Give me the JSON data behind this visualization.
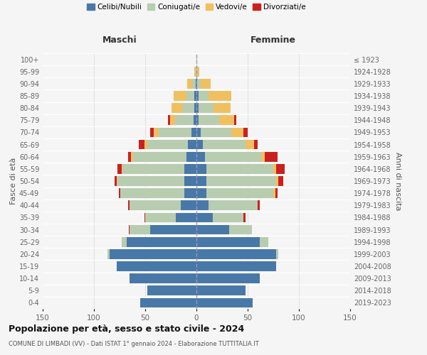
{
  "age_groups": [
    "0-4",
    "5-9",
    "10-14",
    "15-19",
    "20-24",
    "25-29",
    "30-34",
    "35-39",
    "40-44",
    "45-49",
    "50-54",
    "55-59",
    "60-64",
    "65-69",
    "70-74",
    "75-79",
    "80-84",
    "85-89",
    "90-94",
    "95-99",
    "100+"
  ],
  "birth_years": [
    "2019-2023",
    "2014-2018",
    "2009-2013",
    "2004-2008",
    "1999-2003",
    "1994-1998",
    "1989-1993",
    "1984-1988",
    "1979-1983",
    "1974-1978",
    "1969-1973",
    "1964-1968",
    "1959-1963",
    "1954-1958",
    "1949-1953",
    "1944-1948",
    "1939-1943",
    "1934-1938",
    "1929-1933",
    "1924-1928",
    "≤ 1923"
  ],
  "maschi": {
    "celibi": [
      55,
      48,
      65,
      78,
      85,
      68,
      45,
      20,
      15,
      12,
      12,
      12,
      10,
      8,
      5,
      3,
      2,
      2,
      1,
      0,
      0
    ],
    "coniugati": [
      0,
      0,
      0,
      0,
      2,
      5,
      20,
      30,
      50,
      62,
      65,
      60,
      52,
      40,
      32,
      18,
      12,
      8,
      3,
      1,
      0
    ],
    "vedovi": [
      0,
      0,
      0,
      0,
      0,
      0,
      0,
      0,
      0,
      0,
      1,
      1,
      2,
      3,
      5,
      5,
      10,
      12,
      5,
      1,
      0
    ],
    "divorziati": [
      0,
      0,
      0,
      0,
      0,
      0,
      1,
      1,
      2,
      2,
      2,
      4,
      3,
      5,
      3,
      2,
      0,
      0,
      0,
      0,
      0
    ]
  },
  "femmine": {
    "nubili": [
      55,
      48,
      62,
      78,
      78,
      62,
      32,
      16,
      12,
      10,
      10,
      10,
      8,
      6,
      4,
      2,
      2,
      2,
      1,
      0,
      0
    ],
    "coniugate": [
      0,
      0,
      0,
      0,
      2,
      8,
      22,
      30,
      48,
      65,
      68,
      65,
      55,
      42,
      30,
      20,
      15,
      10,
      3,
      1,
      0
    ],
    "vedove": [
      0,
      0,
      0,
      0,
      0,
      0,
      0,
      0,
      0,
      2,
      2,
      3,
      4,
      8,
      12,
      15,
      16,
      22,
      10,
      2,
      1
    ],
    "divorziate": [
      0,
      0,
      0,
      0,
      0,
      0,
      0,
      2,
      2,
      2,
      5,
      8,
      12,
      4,
      4,
      2,
      0,
      0,
      0,
      0,
      0
    ]
  },
  "colors": {
    "celibi": "#4878a8",
    "coniugati": "#b8ccb0",
    "vedovi": "#f0c060",
    "divorziati": "#cc2020"
  },
  "title_main": "Popolazione per età, sesso e stato civile - 2024",
  "title_sub": "COMUNE DI LIMBADI (VV) - Dati ISTAT 1° gennaio 2024 - Elaborazione TUTTITALIA.IT",
  "xlabel_left": "Maschi",
  "xlabel_right": "Femmine",
  "ylabel_left": "Fasce di età",
  "ylabel_right": "Anni di nascita",
  "xlim": 150,
  "background_color": "#f5f5f5",
  "legend_labels": [
    "Celibi/Nubili",
    "Coniugati/e",
    "Vedovi/e",
    "Divorziati/e"
  ]
}
